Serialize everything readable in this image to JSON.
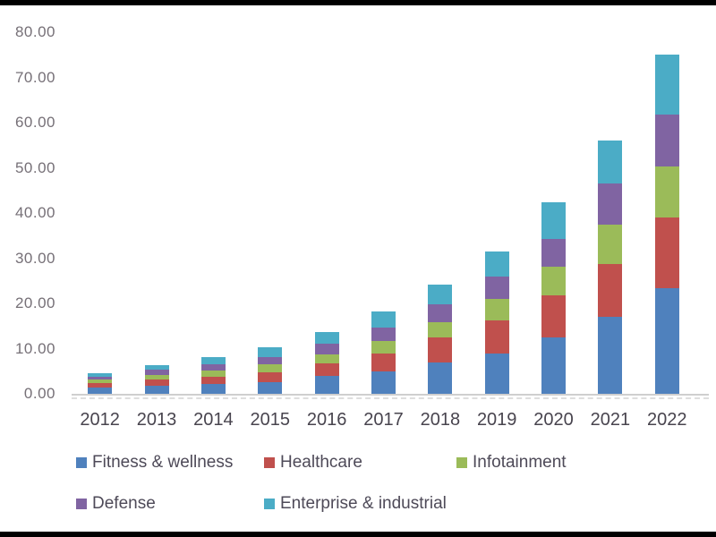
{
  "page": {
    "background": "#000000",
    "canvas_background": "#ffffff",
    "axis_line_color": "#cfcfcf",
    "ytick_color": "#767077",
    "xlabel_color": "#48444e",
    "legend_text_color": "#4e4a58"
  },
  "chart_data": {
    "type": "bar",
    "stacked": true,
    "title": "",
    "xlabel": "",
    "ylabel": "",
    "categories": [
      "2012",
      "2013",
      "2014",
      "2015",
      "2016",
      "2017",
      "2018",
      "2019",
      "2020",
      "2021",
      "2022"
    ],
    "series": [
      {
        "name": "Fitness & wellness",
        "color": "#4F81BD",
        "values": [
          1.3,
          1.7,
          2.2,
          2.5,
          4.0,
          5.0,
          7.0,
          9.0,
          12.4,
          17.0,
          23.3
        ]
      },
      {
        "name": "Healthcare",
        "color": "#C0504D",
        "values": [
          1.0,
          1.5,
          1.6,
          2.2,
          2.7,
          4.0,
          5.4,
          7.3,
          9.3,
          11.8,
          15.7
        ]
      },
      {
        "name": "Infotainment",
        "color": "#9BBB59",
        "values": [
          0.8,
          1.0,
          1.4,
          1.9,
          2.0,
          2.6,
          3.5,
          4.6,
          6.4,
          8.7,
          11.4
        ]
      },
      {
        "name": "Defense",
        "color": "#8064A2",
        "values": [
          0.7,
          1.1,
          1.4,
          1.5,
          2.4,
          3.0,
          4.0,
          5.0,
          6.2,
          9.0,
          11.4
        ]
      },
      {
        "name": "Enterprise & industrial",
        "color": "#4BACC6",
        "values": [
          0.8,
          1.1,
          1.5,
          2.3,
          2.6,
          3.6,
          4.2,
          5.6,
          8.0,
          9.6,
          13.2
        ]
      }
    ],
    "ylim": [
      0,
      80
    ],
    "ytick_step": 10,
    "ytick_labels": [
      "0.00",
      "10.00",
      "20.00",
      "30.00",
      "40.00",
      "50.00",
      "60.00",
      "70.00",
      "80.00"
    ],
    "grid": false,
    "legend_position": "bottom"
  }
}
